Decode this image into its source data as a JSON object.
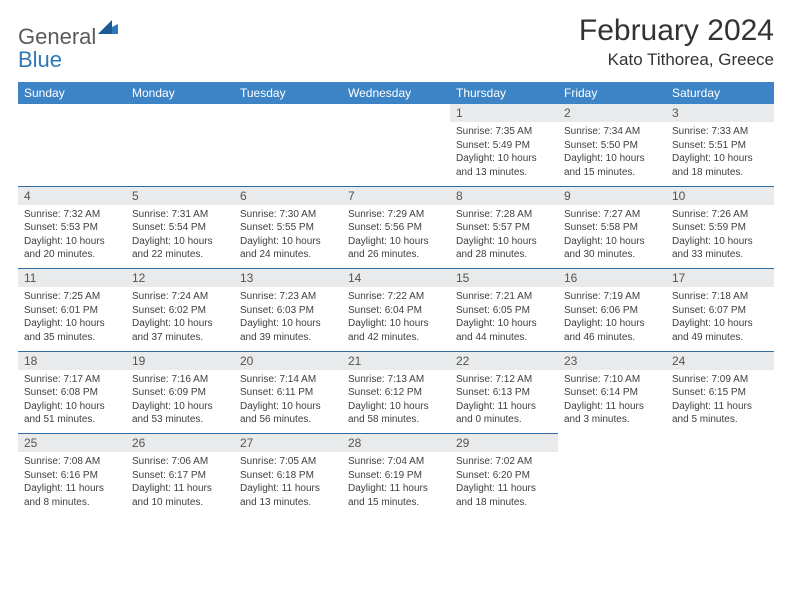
{
  "brand": {
    "name_part1": "General",
    "name_part2": "Blue",
    "text_color": "#5a5a5a",
    "accent_color": "#2e77b8"
  },
  "header": {
    "month_title": "February 2024",
    "location": "Kato Tithorea, Greece"
  },
  "theme": {
    "header_row_bg": "#3d84c6",
    "header_row_text": "#ffffff",
    "daynum_bg": "#e9eaeb",
    "daynum_text": "#545454",
    "cell_bg": "#ffffff",
    "cell_text": "#404040",
    "row_divider": "#2e6da4",
    "title_fontsize": 30,
    "location_fontsize": 17,
    "dayheader_fontsize": 12,
    "daynum_fontsize": 12,
    "detail_fontsize": 10
  },
  "day_headers": [
    "Sunday",
    "Monday",
    "Tuesday",
    "Wednesday",
    "Thursday",
    "Friday",
    "Saturday"
  ],
  "weeks": [
    [
      null,
      null,
      null,
      null,
      {
        "n": "1",
        "sunrise": "7:35 AM",
        "sunset": "5:49 PM",
        "daylight": "10 hours and 13 minutes."
      },
      {
        "n": "2",
        "sunrise": "7:34 AM",
        "sunset": "5:50 PM",
        "daylight": "10 hours and 15 minutes."
      },
      {
        "n": "3",
        "sunrise": "7:33 AM",
        "sunset": "5:51 PM",
        "daylight": "10 hours and 18 minutes."
      }
    ],
    [
      {
        "n": "4",
        "sunrise": "7:32 AM",
        "sunset": "5:53 PM",
        "daylight": "10 hours and 20 minutes."
      },
      {
        "n": "5",
        "sunrise": "7:31 AM",
        "sunset": "5:54 PM",
        "daylight": "10 hours and 22 minutes."
      },
      {
        "n": "6",
        "sunrise": "7:30 AM",
        "sunset": "5:55 PM",
        "daylight": "10 hours and 24 minutes."
      },
      {
        "n": "7",
        "sunrise": "7:29 AM",
        "sunset": "5:56 PM",
        "daylight": "10 hours and 26 minutes."
      },
      {
        "n": "8",
        "sunrise": "7:28 AM",
        "sunset": "5:57 PM",
        "daylight": "10 hours and 28 minutes."
      },
      {
        "n": "9",
        "sunrise": "7:27 AM",
        "sunset": "5:58 PM",
        "daylight": "10 hours and 30 minutes."
      },
      {
        "n": "10",
        "sunrise": "7:26 AM",
        "sunset": "5:59 PM",
        "daylight": "10 hours and 33 minutes."
      }
    ],
    [
      {
        "n": "11",
        "sunrise": "7:25 AM",
        "sunset": "6:01 PM",
        "daylight": "10 hours and 35 minutes."
      },
      {
        "n": "12",
        "sunrise": "7:24 AM",
        "sunset": "6:02 PM",
        "daylight": "10 hours and 37 minutes."
      },
      {
        "n": "13",
        "sunrise": "7:23 AM",
        "sunset": "6:03 PM",
        "daylight": "10 hours and 39 minutes."
      },
      {
        "n": "14",
        "sunrise": "7:22 AM",
        "sunset": "6:04 PM",
        "daylight": "10 hours and 42 minutes."
      },
      {
        "n": "15",
        "sunrise": "7:21 AM",
        "sunset": "6:05 PM",
        "daylight": "10 hours and 44 minutes."
      },
      {
        "n": "16",
        "sunrise": "7:19 AM",
        "sunset": "6:06 PM",
        "daylight": "10 hours and 46 minutes."
      },
      {
        "n": "17",
        "sunrise": "7:18 AM",
        "sunset": "6:07 PM",
        "daylight": "10 hours and 49 minutes."
      }
    ],
    [
      {
        "n": "18",
        "sunrise": "7:17 AM",
        "sunset": "6:08 PM",
        "daylight": "10 hours and 51 minutes."
      },
      {
        "n": "19",
        "sunrise": "7:16 AM",
        "sunset": "6:09 PM",
        "daylight": "10 hours and 53 minutes."
      },
      {
        "n": "20",
        "sunrise": "7:14 AM",
        "sunset": "6:11 PM",
        "daylight": "10 hours and 56 minutes."
      },
      {
        "n": "21",
        "sunrise": "7:13 AM",
        "sunset": "6:12 PM",
        "daylight": "10 hours and 58 minutes."
      },
      {
        "n": "22",
        "sunrise": "7:12 AM",
        "sunset": "6:13 PM",
        "daylight": "11 hours and 0 minutes."
      },
      {
        "n": "23",
        "sunrise": "7:10 AM",
        "sunset": "6:14 PM",
        "daylight": "11 hours and 3 minutes."
      },
      {
        "n": "24",
        "sunrise": "7:09 AM",
        "sunset": "6:15 PM",
        "daylight": "11 hours and 5 minutes."
      }
    ],
    [
      {
        "n": "25",
        "sunrise": "7:08 AM",
        "sunset": "6:16 PM",
        "daylight": "11 hours and 8 minutes."
      },
      {
        "n": "26",
        "sunrise": "7:06 AM",
        "sunset": "6:17 PM",
        "daylight": "11 hours and 10 minutes."
      },
      {
        "n": "27",
        "sunrise": "7:05 AM",
        "sunset": "6:18 PM",
        "daylight": "11 hours and 13 minutes."
      },
      {
        "n": "28",
        "sunrise": "7:04 AM",
        "sunset": "6:19 PM",
        "daylight": "11 hours and 15 minutes."
      },
      {
        "n": "29",
        "sunrise": "7:02 AM",
        "sunset": "6:20 PM",
        "daylight": "11 hours and 18 minutes."
      },
      null,
      null
    ]
  ],
  "labels": {
    "sunrise": "Sunrise:",
    "sunset": "Sunset:",
    "daylight": "Daylight:"
  }
}
